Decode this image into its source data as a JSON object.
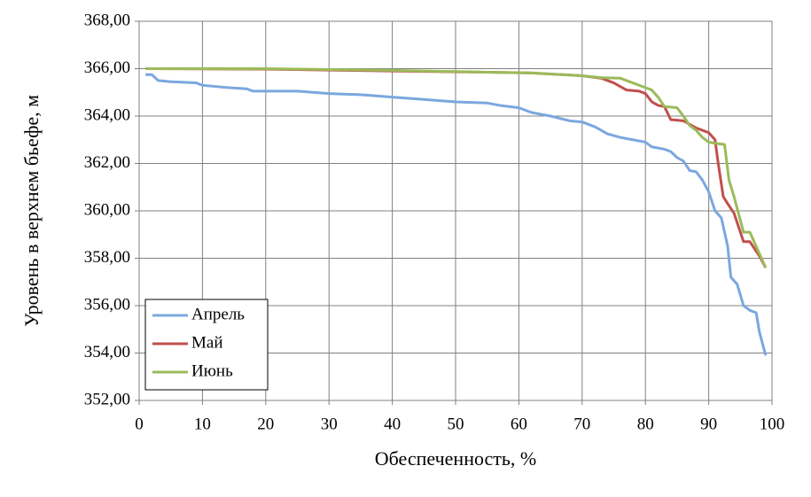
{
  "chart_data": {
    "type": "line",
    "xlabel": "Обеспеченность, %",
    "ylabel": "Уровень в верхнем бьефе, м",
    "xlim": [
      0,
      100
    ],
    "xticks": [
      0,
      10,
      20,
      30,
      40,
      50,
      60,
      70,
      80,
      90,
      100
    ],
    "ylim": [
      352,
      368
    ],
    "yticks": [
      {
        "value": 352,
        "label": "352,00"
      },
      {
        "value": 354,
        "label": "354,00"
      },
      {
        "value": 356,
        "label": "356,00"
      },
      {
        "value": 358,
        "label": "358,00"
      },
      {
        "value": 360,
        "label": "360,00"
      },
      {
        "value": 362,
        "label": "362,00"
      },
      {
        "value": 364,
        "label": "364,00"
      },
      {
        "value": 366,
        "label": "366,00"
      },
      {
        "value": 368,
        "label": "368,00"
      }
    ],
    "grid": true,
    "legend": "lower left",
    "series": [
      {
        "name": "Апрель",
        "color": "#7ba7df",
        "x": [
          1,
          2,
          3,
          5,
          9,
          10,
          12,
          14,
          17,
          18,
          25,
          30,
          35,
          40,
          45,
          50,
          55,
          57,
          60,
          62,
          65,
          68,
          70,
          72,
          74,
          76,
          78,
          80,
          81,
          83,
          84,
          85,
          86,
          87,
          88,
          89,
          90,
          91,
          92,
          93,
          93.5,
          94.5,
          95.5,
          96.5,
          97.5,
          98,
          99
        ],
        "values": [
          365.75,
          365.75,
          365.5,
          365.45,
          365.4,
          365.3,
          365.25,
          365.2,
          365.15,
          365.05,
          365.05,
          364.95,
          364.9,
          364.8,
          364.7,
          364.6,
          364.55,
          364.45,
          364.35,
          364.15,
          364.0,
          363.8,
          363.75,
          363.55,
          363.25,
          363.1,
          363.0,
          362.9,
          362.7,
          362.6,
          362.5,
          362.25,
          362.1,
          361.7,
          361.65,
          361.3,
          360.8,
          360.0,
          359.7,
          358.5,
          357.2,
          356.9,
          356.0,
          355.8,
          355.7,
          354.9,
          353.9
        ]
      },
      {
        "name": "Май",
        "color": "#c0504d",
        "x": [
          1,
          20,
          40,
          55,
          62,
          70,
          73,
          75,
          77,
          79,
          80,
          81,
          82,
          83,
          84,
          86,
          88,
          89,
          90,
          91,
          91.5,
          92.3,
          93,
          94,
          95,
          95.5,
          96.5,
          97,
          98,
          99
        ],
        "values": [
          366,
          365.98,
          365.9,
          365.85,
          365.82,
          365.7,
          365.6,
          365.4,
          365.1,
          365.05,
          364.95,
          364.6,
          364.45,
          364.4,
          363.85,
          363.8,
          363.5,
          363.4,
          363.3,
          363.0,
          362.0,
          360.6,
          360.3,
          359.9,
          359.1,
          358.7,
          358.7,
          358.5,
          358.1,
          357.6
        ]
      },
      {
        "name": "Июнь",
        "color": "#9bbb59",
        "x": [
          1,
          20,
          40,
          55,
          62,
          70,
          73,
          76,
          78,
          80,
          81,
          82,
          83,
          85,
          86,
          87,
          88,
          89,
          90,
          91,
          92.5,
          93.2,
          94,
          95,
          95.5,
          96.5,
          97,
          98,
          99
        ],
        "values": [
          366,
          366,
          365.93,
          365.85,
          365.82,
          365.7,
          365.62,
          365.6,
          365.4,
          365.2,
          365.1,
          364.8,
          364.4,
          364.35,
          364.0,
          363.6,
          363.4,
          363.1,
          362.9,
          362.85,
          362.8,
          361.3,
          360.6,
          359.6,
          359.1,
          359.1,
          358.8,
          358.2,
          357.6
        ]
      }
    ]
  }
}
